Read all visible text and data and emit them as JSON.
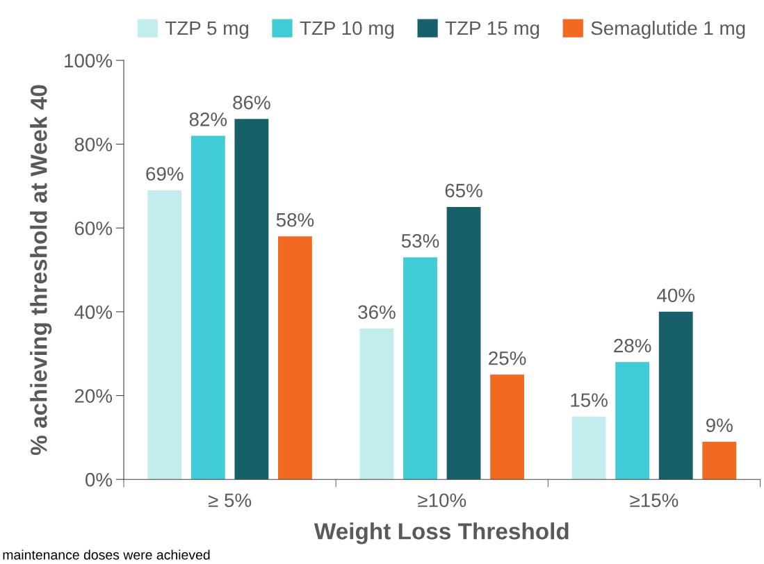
{
  "chart_data": {
    "type": "bar",
    "xlabel": "Weight Loss Threshold",
    "ylabel": "% achieving threshold at Week 40",
    "categories": [
      "≥ 5%",
      "≥10%",
      "≥15%"
    ],
    "series": [
      {
        "name": "TZP 5 mg",
        "color": "#c3ecee",
        "values": [
          69,
          36,
          15
        ],
        "value_labels": [
          "69%",
          "36%",
          "15%"
        ]
      },
      {
        "name": "TZP 10 mg",
        "color": "#40cbd6",
        "values": [
          82,
          53,
          28
        ],
        "value_labels": [
          "82%",
          "53%",
          "28%"
        ]
      },
      {
        "name": "TZP 15 mg",
        "color": "#17606a",
        "values": [
          86,
          65,
          40
        ],
        "value_labels": [
          "86%",
          "65%",
          "40%"
        ]
      },
      {
        "name": "Semaglutide 1 mg",
        "color": "#f26a21",
        "values": [
          58,
          25,
          9
        ],
        "value_labels": [
          "58%",
          "25%",
          "9%"
        ]
      }
    ],
    "ylim": [
      0,
      100
    ],
    "yticks": [
      {
        "value": 0,
        "label": "0%"
      },
      {
        "value": 20,
        "label": "20%"
      },
      {
        "value": 40,
        "label": "40%"
      },
      {
        "value": 60,
        "label": "60%"
      },
      {
        "value": 80,
        "label": "80%"
      },
      {
        "value": 100,
        "label": "100%"
      }
    ],
    "grid": false,
    "legend": "top",
    "annotations": [
      "maintenance doses were achieved"
    ]
  }
}
